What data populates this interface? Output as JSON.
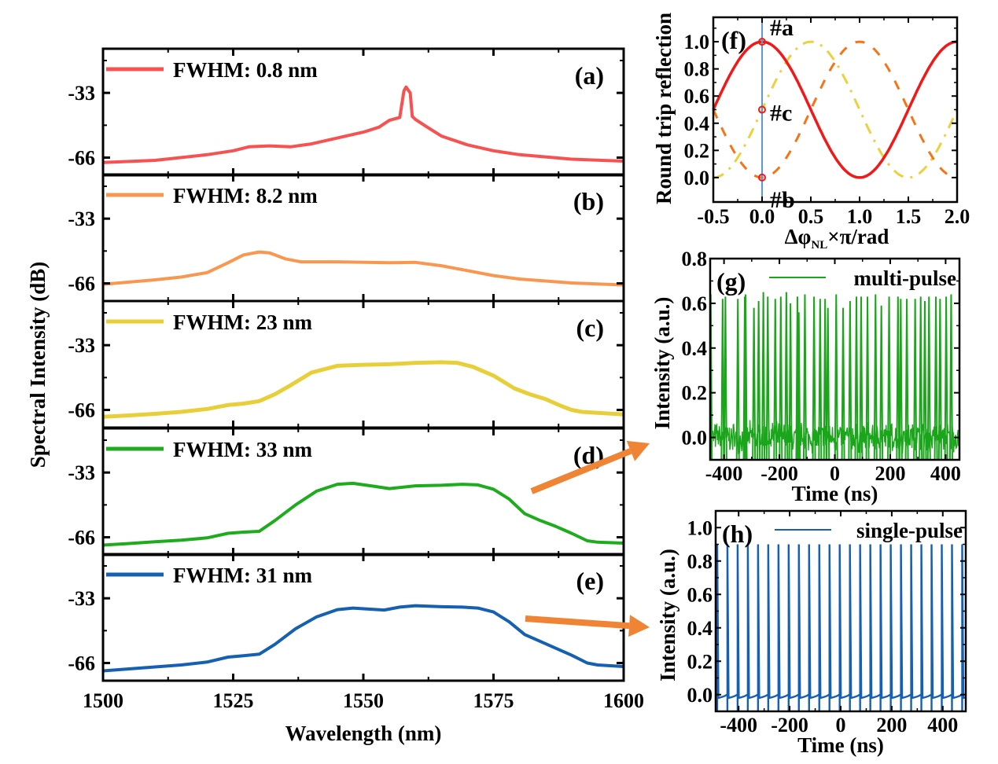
{
  "figure": {
    "colors": {
      "a": "#f75252",
      "b": "#f99750",
      "c": "#e8cf3a",
      "d": "#1eac1e",
      "e": "#1560b0",
      "f_red": "#f31818",
      "f_orange": "#f47416",
      "f_yellow": "#ead23c",
      "f_vline": "#5b9bd5",
      "g": "#1aa51a",
      "h": "#1560b0",
      "arrow": "#ee8434"
    }
  },
  "chart_data": [
    {
      "id": "spectra",
      "type": "line",
      "title": "",
      "xlabel": "Wavelength (nm)",
      "ylabel": "Spectral Intensity (dB)",
      "xlim": [
        1500,
        1600
      ],
      "xticks": [
        1500,
        1525,
        1550,
        1575,
        1600
      ],
      "xtick_labels": [
        "1500",
        "1525",
        "1550",
        "1575",
        "1600"
      ],
      "ylim": [
        -75,
        -10.5
      ],
      "yticks": [
        -33,
        -66
      ],
      "ytick_labels": [
        "-33",
        "-66"
      ],
      "panels": [
        {
          "label": "(a)",
          "legend": "FWHM: 0.8 nm",
          "color_key": "a",
          "x": [
            1500,
            1510,
            1520,
            1525,
            1528,
            1532,
            1536,
            1540,
            1545,
            1550,
            1553,
            1555,
            1557,
            1557.8,
            1558.2,
            1558.6,
            1559.0,
            1559.4,
            1560,
            1562,
            1565,
            1570,
            1575,
            1580,
            1590,
            1600
          ],
          "y": [
            -68.5,
            -67.4,
            -64.5,
            -62.5,
            -60.5,
            -60.0,
            -60.5,
            -59.0,
            -56.0,
            -53.0,
            -50.5,
            -47.0,
            -45.5,
            -32.0,
            -30.0,
            -31.5,
            -33.0,
            -45.0,
            -46.5,
            -50.0,
            -55.0,
            -59.5,
            -62.5,
            -64.5,
            -66.8,
            -67.8
          ]
        },
        {
          "label": "(b)",
          "legend": "FWHM: 8.2 nm",
          "color_key": "b",
          "x": [
            1500,
            1510,
            1515,
            1520,
            1524,
            1527,
            1530,
            1532,
            1535,
            1538,
            1545,
            1555,
            1560,
            1565,
            1570,
            1575,
            1580,
            1590,
            1600
          ],
          "y": [
            -66.5,
            -64.2,
            -62.8,
            -60.5,
            -55.5,
            -51.5,
            -50.0,
            -50.5,
            -53.5,
            -55.0,
            -55.0,
            -55.5,
            -55.3,
            -57.0,
            -59.5,
            -62.0,
            -63.8,
            -65.8,
            -66.8
          ]
        },
        {
          "label": "(c)",
          "legend": "FWHM: 23 nm",
          "color_key": "c",
          "x": [
            1500,
            1505,
            1510,
            1515,
            1520,
            1524,
            1527,
            1530,
            1533,
            1536,
            1540,
            1545,
            1550,
            1555,
            1560,
            1565,
            1568,
            1571,
            1575,
            1579,
            1582,
            1585,
            1588,
            1590,
            1592,
            1595,
            1600
          ],
          "y": [
            -69.5,
            -68.8,
            -68.0,
            -67.0,
            -65.5,
            -63.5,
            -62.8,
            -61.5,
            -58.0,
            -53.5,
            -47.0,
            -43.5,
            -43.0,
            -42.7,
            -42.0,
            -41.7,
            -42.0,
            -44.0,
            -48.5,
            -55.0,
            -58.0,
            -60.5,
            -64.0,
            -66.0,
            -67.0,
            -67.5,
            -68.3
          ]
        },
        {
          "label": "(d)",
          "legend": "FWHM: 33 nm",
          "color_key": "d",
          "x": [
            1500,
            1505,
            1510,
            1515,
            1520,
            1524,
            1527,
            1530,
            1533,
            1537,
            1541,
            1545,
            1548,
            1552,
            1555,
            1560,
            1565,
            1569,
            1572,
            1575,
            1578,
            1581,
            1584,
            1587,
            1590,
            1593,
            1595,
            1600
          ],
          "y": [
            -70.0,
            -69.2,
            -68.3,
            -67.5,
            -66.3,
            -64.0,
            -63.4,
            -63.0,
            -57.5,
            -49.5,
            -42.5,
            -39.0,
            -38.5,
            -40.0,
            -41.2,
            -39.8,
            -39.5,
            -39.0,
            -39.3,
            -41.5,
            -46.5,
            -54.0,
            -57.5,
            -60.5,
            -64.0,
            -67.8,
            -68.5,
            -69.0
          ]
        },
        {
          "label": "(e)",
          "legend": "FWHM: 31 nm",
          "color_key": "e",
          "x": [
            1500,
            1505,
            1510,
            1515,
            1520,
            1524,
            1527,
            1530,
            1533,
            1537,
            1541,
            1545,
            1548,
            1551,
            1554,
            1557,
            1560,
            1565,
            1569,
            1572,
            1575,
            1578,
            1581,
            1584,
            1587,
            1590,
            1593,
            1595,
            1600
          ],
          "y": [
            -70.0,
            -69.0,
            -68.0,
            -67.0,
            -65.5,
            -63.0,
            -62.3,
            -61.5,
            -56.5,
            -48.5,
            -42.5,
            -38.8,
            -38.0,
            -38.5,
            -39.0,
            -37.5,
            -36.8,
            -37.3,
            -37.5,
            -38.0,
            -40.0,
            -45.0,
            -51.5,
            -55.0,
            -58.5,
            -62.0,
            -66.0,
            -67.0,
            -67.8
          ]
        }
      ]
    },
    {
      "id": "panel-f",
      "type": "line",
      "label": "(f)",
      "xlabel_parts": [
        "Δφ",
        "NL",
        "×π/rad"
      ],
      "ylabel": "Round trip reflection",
      "xlim": [
        -0.5,
        2.0
      ],
      "ylim": [
        -0.18,
        1.18
      ],
      "xticks": [
        -0.5,
        0.0,
        0.5,
        1.0,
        1.5,
        2.0
      ],
      "xtick_labels": [
        "-0.5",
        "0.0",
        "0.5",
        "1.0",
        "1.5",
        "2.0"
      ],
      "yticks": [
        0.0,
        0.2,
        0.4,
        0.6,
        0.8,
        1.0
      ],
      "ytick_labels": [
        "0.0",
        "0.2",
        "0.4",
        "0.6",
        "0.8",
        "1.0"
      ],
      "series": [
        {
          "name": "red-solid",
          "formula": "(1+cos(pi*x))/2",
          "style": "solid",
          "color_key": "f_red"
        },
        {
          "name": "orange-dashed",
          "formula": "(1-cos(pi*x))/2",
          "style": "dashed",
          "color_key": "f_orange"
        },
        {
          "name": "yellow-dashdot",
          "formula": "(1+sin(pi*x))/2",
          "style": "dashdot",
          "color_key": "f_yellow"
        }
      ],
      "vline_x": 0.0,
      "markers": [
        {
          "x": 0.0,
          "y": 1.0,
          "label": "#a"
        },
        {
          "x": 0.0,
          "y": 0.5,
          "label": "#c"
        },
        {
          "x": 0.0,
          "y": 0.0,
          "label": "#b"
        }
      ]
    },
    {
      "id": "panel-g",
      "type": "line",
      "label": "(g)",
      "legend": "multi-pulse",
      "xlabel": "Time (ns)",
      "ylabel": "Intensity (a.u.)",
      "xlim": [
        -450,
        450
      ],
      "ylim": [
        -0.1,
        0.8
      ],
      "xticks": [
        -400,
        -200,
        0,
        200,
        400
      ],
      "xtick_labels": [
        "-400",
        "-200",
        "0",
        "200",
        "400"
      ],
      "yticks": [
        0.0,
        0.2,
        0.4,
        0.6,
        0.8
      ],
      "ytick_labels": [
        "0.0",
        "0.2",
        "0.4",
        "0.6",
        "0.8"
      ],
      "pulse_times": [
        -448,
        -405,
        -395,
        -350,
        -325,
        -322,
        -292,
        -275,
        -258,
        -242,
        -215,
        -195,
        -175,
        -160,
        -135,
        -130,
        -108,
        -75,
        -53,
        -35,
        -25,
        5,
        30,
        55,
        78,
        95,
        118,
        147,
        168,
        196,
        228,
        238,
        260,
        290,
        310,
        325,
        340,
        365,
        380,
        402,
        420
      ],
      "pulse_peaks": [
        0.64,
        0.62,
        0.63,
        0.62,
        0.63,
        0.64,
        0.58,
        0.61,
        0.65,
        0.63,
        0.62,
        0.63,
        0.65,
        0.6,
        0.63,
        0.56,
        0.64,
        0.63,
        0.62,
        0.62,
        0.58,
        0.64,
        0.58,
        0.61,
        0.63,
        0.63,
        0.63,
        0.64,
        0.59,
        0.63,
        0.63,
        0.62,
        0.62,
        0.62,
        0.63,
        0.61,
        0.63,
        0.63,
        0.62,
        0.63,
        0.64
      ],
      "noise_level": 0.05
    },
    {
      "id": "panel-h",
      "type": "line",
      "label": "(h)",
      "legend": "single-pulse",
      "xlabel": "Time (ns)",
      "ylabel": "Intensity (a.u.)",
      "xlim": [
        -490,
        490
      ],
      "ylim": [
        -0.1,
        1.1
      ],
      "xticks": [
        -400,
        -200,
        0,
        200,
        400
      ],
      "xtick_labels": [
        "-400",
        "-200",
        "0",
        "200",
        "400"
      ],
      "yticks": [
        0.0,
        0.2,
        0.4,
        0.6,
        0.8,
        1.0
      ],
      "ytick_labels": [
        "0.0",
        "0.2",
        "0.4",
        "0.6",
        "0.8",
        "1.0"
      ],
      "pulse_period_ns": 40,
      "pulse_first_ns": -484,
      "pulse_count": 25,
      "pulse_peak": 0.9
    }
  ]
}
